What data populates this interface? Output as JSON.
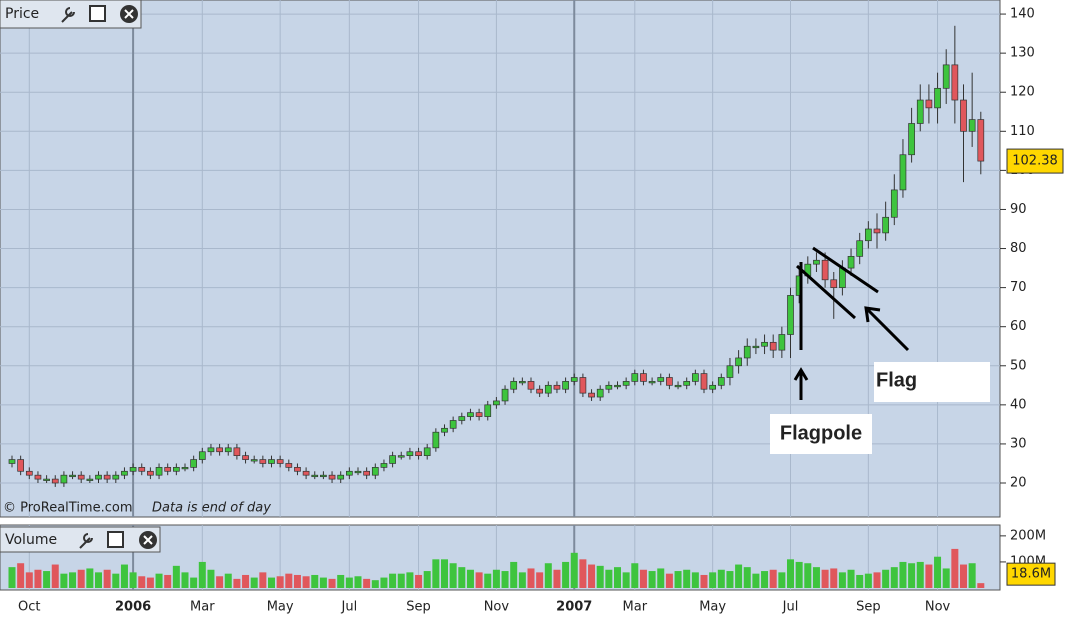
{
  "chart_data": [
    {
      "type": "candlestick",
      "title": "Price",
      "source": "© ProRealTime.com",
      "note": "Data is end of day",
      "annotations": [
        "Flagpole",
        "Flag"
      ],
      "categories": [
        null,
        null,
        "Oct",
        null,
        null,
        null,
        null,
        null,
        null,
        null,
        null,
        null,
        null,
        null,
        "2006",
        null,
        null,
        null,
        null,
        null,
        null,
        null,
        "Mar",
        null,
        null,
        null,
        null,
        null,
        null,
        null,
        null,
        "May",
        null,
        null,
        null,
        null,
        null,
        null,
        null,
        "Jul",
        null,
        null,
        null,
        null,
        null,
        null,
        null,
        "Sep",
        null,
        null,
        null,
        null,
        null,
        null,
        null,
        null,
        "Nov",
        null,
        null,
        null,
        null,
        null,
        null,
        null,
        null,
        "2007",
        null,
        null,
        null,
        null,
        null,
        null,
        "Mar",
        null,
        null,
        null,
        null,
        null,
        null,
        null,
        null,
        "May",
        null,
        null,
        null,
        null,
        null,
        null,
        null,
        null,
        "Jul",
        null,
        null,
        null,
        null,
        null,
        null,
        null,
        null,
        "Sep",
        null,
        null,
        null,
        null,
        null,
        null,
        null,
        "Nov",
        null,
        null,
        null,
        null,
        null
      ],
      "open": [
        25,
        26,
        23,
        22,
        21,
        21,
        20,
        22,
        22,
        21,
        21,
        22,
        21,
        22,
        23,
        24,
        23,
        22,
        24,
        23,
        24,
        24,
        26,
        28,
        29,
        28,
        29,
        27,
        26,
        26,
        25,
        26,
        25,
        24,
        23,
        22,
        22,
        22,
        21,
        22,
        23,
        23,
        22,
        24,
        25,
        27,
        27,
        28,
        27,
        29,
        33,
        34,
        36,
        37,
        38,
        37,
        40,
        41,
        44,
        46,
        46,
        44,
        43,
        45,
        44,
        46,
        47,
        43,
        42,
        44,
        45,
        45,
        46,
        48,
        46,
        46,
        47,
        45,
        45,
        46,
        48,
        44,
        45,
        47,
        50,
        52,
        55,
        55,
        56,
        54,
        58,
        68,
        73,
        76,
        77,
        72,
        70,
        75,
        78,
        82,
        85,
        84,
        88,
        95,
        104,
        112,
        118,
        116,
        121,
        127,
        118,
        110,
        113
      ],
      "high": [
        27,
        27,
        24,
        23,
        22,
        22,
        23,
        23,
        23,
        22,
        23,
        23,
        23,
        24,
        25,
        25,
        24,
        25,
        25,
        25,
        25,
        27,
        29,
        30,
        30,
        30,
        30,
        28,
        27,
        27,
        27,
        27,
        26,
        25,
        24,
        23,
        23,
        23,
        23,
        24,
        24,
        24,
        25,
        26,
        28,
        28,
        29,
        29,
        30,
        34,
        35,
        37,
        38,
        39,
        39,
        41,
        42,
        45,
        47,
        47,
        47,
        45,
        46,
        46,
        47,
        48,
        48,
        44,
        45,
        46,
        46,
        47,
        49,
        49,
        47,
        48,
        48,
        46,
        47,
        49,
        49,
        46,
        48,
        52,
        54,
        57,
        57,
        58,
        58,
        60,
        70,
        75,
        78,
        79,
        79,
        74,
        77,
        80,
        84,
        87,
        89,
        92,
        99,
        108,
        116,
        122,
        122,
        125,
        131,
        137,
        122,
        125,
        115
      ],
      "low": [
        24,
        22,
        21,
        20,
        20,
        19,
        19,
        21,
        20,
        20,
        20,
        20,
        20,
        21,
        22,
        22,
        21,
        21,
        22,
        22,
        23,
        23,
        25,
        27,
        27,
        27,
        26,
        25,
        25,
        24,
        24,
        24,
        23,
        22,
        21,
        21,
        21,
        20,
        20,
        21,
        22,
        21,
        21,
        23,
        24,
        26,
        26,
        26,
        26,
        28,
        32,
        33,
        35,
        36,
        36,
        36,
        39,
        40,
        43,
        45,
        43,
        42,
        42,
        43,
        43,
        45,
        42,
        41,
        41,
        43,
        44,
        44,
        45,
        45,
        45,
        45,
        44,
        44,
        44,
        45,
        43,
        43,
        44,
        45,
        48,
        50,
        53,
        53,
        52,
        52,
        52,
        66,
        71,
        74,
        70,
        62,
        68,
        73,
        76,
        80,
        80,
        82,
        86,
        93,
        102,
        110,
        112,
        112,
        117,
        112,
        97,
        106,
        99
      ],
      "close": [
        26,
        23,
        22,
        21,
        21,
        20,
        22,
        22,
        21,
        21,
        22,
        21,
        22,
        23,
        24,
        23,
        22,
        24,
        23,
        24,
        24,
        26,
        28,
        29,
        28,
        29,
        27,
        26,
        26,
        25,
        26,
        25,
        24,
        23,
        22,
        22,
        22,
        21,
        22,
        23,
        23,
        22,
        24,
        25,
        27,
        27,
        28,
        27,
        29,
        33,
        34,
        36,
        37,
        38,
        37,
        40,
        41,
        44,
        46,
        46,
        44,
        43,
        45,
        44,
        46,
        47,
        43,
        42,
        44,
        45,
        45,
        46,
        48,
        46,
        46,
        47,
        45,
        45,
        46,
        48,
        44,
        45,
        47,
        50,
        52,
        55,
        55,
        56,
        54,
        58,
        68,
        73,
        76,
        77,
        72,
        70,
        75,
        78,
        82,
        85,
        84,
        88,
        95,
        104,
        112,
        118,
        116,
        121,
        127,
        118,
        110,
        113,
        102.38
      ],
      "up_color": "#3ec43e",
      "down_color": "#e0575c",
      "ylim": [
        11.3,
        143.6
      ],
      "yticks": [
        20,
        30,
        40,
        50,
        60,
        70,
        80,
        90,
        100,
        110,
        120,
        130,
        140
      ],
      "grid": true
    },
    {
      "type": "bar",
      "title": "Volume",
      "values": [
        80,
        95,
        60,
        70,
        65,
        90,
        55,
        60,
        70,
        75,
        60,
        70,
        55,
        90,
        60,
        45,
        40,
        55,
        50,
        85,
        60,
        40,
        100,
        70,
        45,
        55,
        35,
        50,
        40,
        60,
        40,
        45,
        55,
        50,
        45,
        50,
        40,
        35,
        50,
        40,
        45,
        35,
        30,
        40,
        55,
        55,
        60,
        50,
        65,
        110,
        110,
        95,
        80,
        70,
        60,
        55,
        70,
        65,
        100,
        60,
        75,
        60,
        95,
        70,
        100,
        135,
        110,
        90,
        85,
        70,
        80,
        60,
        95,
        70,
        65,
        75,
        55,
        65,
        70,
        60,
        50,
        60,
        70,
        65,
        90,
        80,
        55,
        65,
        70,
        60,
        110,
        100,
        95,
        80,
        70,
        75,
        60,
        70,
        50,
        55,
        60,
        70,
        80,
        100,
        95,
        100,
        90,
        120,
        75,
        150,
        90,
        95,
        18.6
      ],
      "value_labels": [
        null,
        null,
        null,
        null,
        null,
        null,
        null,
        null,
        null,
        null,
        null,
        null,
        null,
        null,
        null,
        null,
        null,
        null,
        null,
        null,
        null,
        null,
        null,
        null,
        null,
        null,
        null,
        null,
        null,
        null,
        null,
        null,
        null,
        null,
        null,
        null,
        null,
        null,
        null,
        null,
        null,
        null,
        null,
        null,
        null,
        null,
        null,
        null,
        null,
        null,
        null,
        null,
        null,
        null,
        null,
        null,
        null,
        null,
        null,
        null,
        null,
        null,
        null,
        null,
        null,
        null,
        null,
        null,
        null,
        null,
        null,
        null,
        null,
        null,
        null,
        null,
        null,
        null,
        null,
        null,
        null,
        null,
        null,
        null,
        null,
        null,
        null,
        null,
        null,
        null,
        null,
        null,
        null,
        null,
        null,
        null,
        null,
        null,
        null,
        null,
        null,
        null,
        null,
        null,
        null,
        null,
        null,
        null,
        null,
        null,
        null,
        null,
        "18.6M"
      ],
      "ylim": [
        0,
        234
      ],
      "yticks": [
        {
          "value": 100,
          "label": "100M"
        },
        {
          "value": 200,
          "label": "200M"
        }
      ]
    }
  ]
}
